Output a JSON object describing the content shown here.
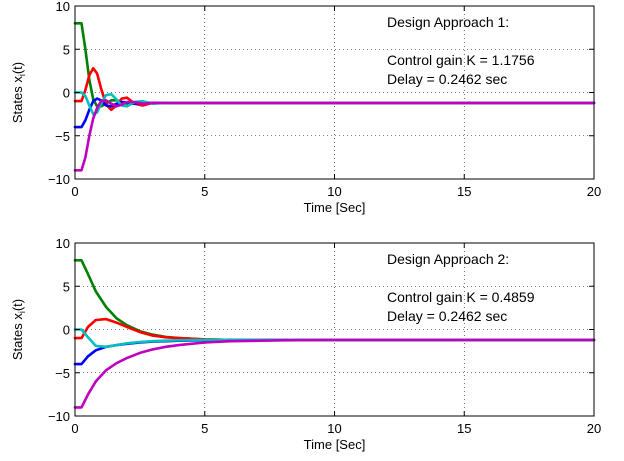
{
  "figure": {
    "panels": [
      {
        "ylabel_main": "States x",
        "ylabel_sub": "i",
        "ylabel_tail": "(t)",
        "xlabel": "Time [Sec]",
        "annotation": {
          "line1": "Design Approach 1:",
          "line2": "Control gain K = 1.1756",
          "line3": "Delay = 0.2462 sec"
        }
      },
      {
        "ylabel_main": "States x",
        "ylabel_sub": "i",
        "ylabel_tail": "(t)",
        "xlabel": "Time [Sec]",
        "annotation": {
          "line1": "Design Approach 2:",
          "line2": "Control gain K = 0.4859",
          "line3": "Delay = 0.2462 sec"
        }
      }
    ]
  },
  "chart_data": [
    {
      "type": "line",
      "xlabel": "Time [Sec]",
      "ylabel": "States x_i(t)",
      "xlim": [
        0,
        20
      ],
      "ylim": [
        -10,
        10
      ],
      "xticks": [
        0,
        5,
        10,
        15,
        20
      ],
      "yticks": [
        -10,
        -5,
        0,
        5,
        10
      ],
      "x_tick_labels": [
        "0",
        "5",
        "10",
        "15",
        "20"
      ],
      "y_tick_labels": [
        "−10",
        "−5",
        "0",
        "5",
        "10"
      ],
      "grid": true,
      "colors": [
        "#008000",
        "#ff0000",
        "#0000ff",
        "#00bfbf",
        "#bf00bf"
      ],
      "series": [
        {
          "color": "#008000",
          "x": [
            0,
            0.25,
            0.4,
            0.55,
            0.7,
            0.85,
            1.0,
            1.2,
            1.4,
            1.6,
            1.8,
            2.0,
            2.3,
            2.6,
            3.0,
            3.5,
            4.0,
            5,
            10,
            15,
            20
          ],
          "y": [
            8,
            8,
            5,
            1.5,
            -0.8,
            -1.6,
            -1.6,
            -1.3,
            -0.9,
            -0.9,
            -1.1,
            -1.3,
            -1.3,
            -1.15,
            -1.2,
            -1.2,
            -1.2,
            -1.2,
            -1.2,
            -1.2,
            -1.2
          ]
        },
        {
          "color": "#ff0000",
          "x": [
            0,
            0.25,
            0.4,
            0.55,
            0.7,
            0.85,
            1.0,
            1.2,
            1.4,
            1.6,
            1.8,
            2.0,
            2.3,
            2.6,
            3.0,
            3.5,
            4.0,
            5,
            10,
            15,
            20
          ],
          "y": [
            -1,
            -1,
            0.3,
            2.0,
            2.8,
            2.2,
            0.5,
            -1.4,
            -2.0,
            -1.5,
            -0.7,
            -0.6,
            -1.3,
            -1.5,
            -1.2,
            -1.2,
            -1.2,
            -1.2,
            -1.2,
            -1.2,
            -1.2
          ]
        },
        {
          "color": "#0000ff",
          "x": [
            0,
            0.25,
            0.4,
            0.55,
            0.7,
            0.85,
            1.0,
            1.2,
            1.4,
            1.6,
            1.8,
            2.0,
            2.3,
            2.6,
            3.0,
            3.5,
            4.0,
            5,
            10,
            15,
            20
          ],
          "y": [
            -4,
            -4,
            -3.2,
            -2.0,
            -1.0,
            -0.7,
            -0.9,
            -1.5,
            -1.6,
            -1.3,
            -1.1,
            -1.15,
            -1.3,
            -1.2,
            -1.2,
            -1.2,
            -1.2,
            -1.2,
            -1.2,
            -1.2,
            -1.2
          ]
        },
        {
          "color": "#00bfbf",
          "x": [
            0,
            0.25,
            0.4,
            0.55,
            0.7,
            0.85,
            1.0,
            1.2,
            1.4,
            1.6,
            1.8,
            2.0,
            2.3,
            2.6,
            3.0,
            3.5,
            4.0,
            5,
            10,
            15,
            20
          ],
          "y": [
            0,
            0,
            -0.4,
            -1.5,
            -2.5,
            -2.3,
            -1.3,
            -0.3,
            -0.2,
            -0.8,
            -1.5,
            -1.6,
            -1.1,
            -1.0,
            -1.3,
            -1.2,
            -1.2,
            -1.2,
            -1.2,
            -1.2,
            -1.2
          ]
        },
        {
          "color": "#bf00bf",
          "x": [
            0,
            0.25,
            0.4,
            0.55,
            0.7,
            0.85,
            1.0,
            1.2,
            1.4,
            1.6,
            1.8,
            2.0,
            2.3,
            2.6,
            3.0,
            3.5,
            4.0,
            5,
            10,
            15,
            20
          ],
          "y": [
            -9,
            -9,
            -7.5,
            -5.0,
            -3.0,
            -1.8,
            -1.0,
            -0.9,
            -1.3,
            -1.6,
            -1.4,
            -1.1,
            -1.1,
            -1.3,
            -1.2,
            -1.2,
            -1.2,
            -1.2,
            -1.2,
            -1.2,
            -1.2
          ]
        }
      ]
    },
    {
      "type": "line",
      "xlabel": "Time [Sec]",
      "ylabel": "States x_i(t)",
      "xlim": [
        0,
        20
      ],
      "ylim": [
        -10,
        10
      ],
      "xticks": [
        0,
        5,
        10,
        15,
        20
      ],
      "yticks": [
        -10,
        -5,
        0,
        5,
        10
      ],
      "x_tick_labels": [
        "0",
        "5",
        "10",
        "15",
        "20"
      ],
      "y_tick_labels": [
        "−10",
        "−5",
        "0",
        "5",
        "10"
      ],
      "grid": true,
      "colors": [
        "#008000",
        "#ff0000",
        "#0000ff",
        "#00bfbf",
        "#bf00bf"
      ],
      "series": [
        {
          "color": "#008000",
          "x": [
            0,
            0.25,
            0.5,
            0.8,
            1.2,
            1.6,
            2.0,
            2.5,
            3.0,
            3.5,
            4.0,
            5.0,
            6.0,
            8.0,
            10,
            15,
            20
          ],
          "y": [
            8,
            8,
            6.4,
            4.4,
            2.6,
            1.3,
            0.5,
            -0.2,
            -0.6,
            -0.85,
            -1.0,
            -1.15,
            -1.2,
            -1.2,
            -1.2,
            -1.2,
            -1.2
          ]
        },
        {
          "color": "#ff0000",
          "x": [
            0,
            0.25,
            0.5,
            0.8,
            1.2,
            1.6,
            2.0,
            2.5,
            3.0,
            3.5,
            4.0,
            5.0,
            6.0,
            8.0,
            10,
            15,
            20
          ],
          "y": [
            -1,
            -1,
            0.3,
            1.1,
            1.2,
            0.8,
            0.3,
            -0.3,
            -0.7,
            -0.9,
            -1.0,
            -1.15,
            -1.2,
            -1.2,
            -1.2,
            -1.2,
            -1.2
          ]
        },
        {
          "color": "#0000ff",
          "x": [
            0,
            0.25,
            0.5,
            0.8,
            1.2,
            1.6,
            2.0,
            2.5,
            3.0,
            3.5,
            4.0,
            5.0,
            6.0,
            8.0,
            10,
            15,
            20
          ],
          "y": [
            -4,
            -4,
            -3.1,
            -2.4,
            -2.0,
            -1.8,
            -1.65,
            -1.5,
            -1.4,
            -1.35,
            -1.3,
            -1.25,
            -1.2,
            -1.2,
            -1.2,
            -1.2,
            -1.2
          ]
        },
        {
          "color": "#00bfbf",
          "x": [
            0,
            0.25,
            0.5,
            0.8,
            1.2,
            1.6,
            2.0,
            2.5,
            3.0,
            3.5,
            4.0,
            5.0,
            6.0,
            8.0,
            10,
            15,
            20
          ],
          "y": [
            0,
            0,
            -0.9,
            -1.9,
            -2.0,
            -1.8,
            -1.6,
            -1.45,
            -1.35,
            -1.3,
            -1.25,
            -1.2,
            -1.2,
            -1.2,
            -1.2,
            -1.2,
            -1.2
          ]
        },
        {
          "color": "#bf00bf",
          "x": [
            0,
            0.25,
            0.5,
            0.8,
            1.2,
            1.6,
            2.0,
            2.5,
            3.0,
            3.5,
            4.0,
            5.0,
            6.0,
            8.0,
            10,
            15,
            20
          ],
          "y": [
            -9,
            -9,
            -7.5,
            -6.0,
            -4.7,
            -3.9,
            -3.3,
            -2.7,
            -2.3,
            -2.0,
            -1.8,
            -1.5,
            -1.35,
            -1.25,
            -1.2,
            -1.2,
            -1.2
          ]
        }
      ]
    }
  ]
}
